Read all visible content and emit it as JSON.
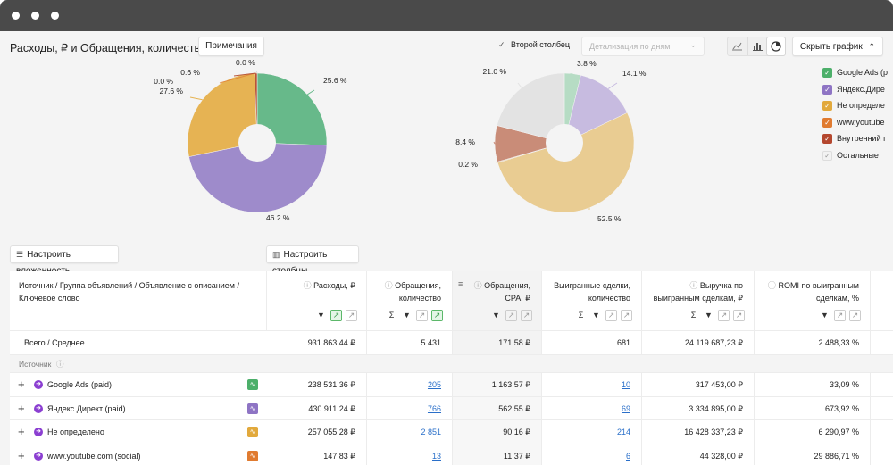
{
  "header": {
    "title": "Расходы, ₽ и Обращения, количество",
    "notes_button": "Примечания",
    "second_column_label": "Второй столбец",
    "detail_placeholder": "Детализация по дням",
    "hide_chart_button": "Скрыть график"
  },
  "chart_data": [
    {
      "type": "pie",
      "slices": [
        {
          "name": "Google Ads (paid)",
          "value": 25.6,
          "label": "25.6 %"
        },
        {
          "name": "Яндекс.Директ (paid)",
          "value": 46.2,
          "label": "46.2 %"
        },
        {
          "name": "Не определено",
          "value": 27.6,
          "label": "27.6 %"
        },
        {
          "name": "",
          "value": 0.0,
          "label": "0.0 %"
        },
        {
          "name": "",
          "value": 0.6,
          "label": "0.6 %"
        },
        {
          "name": "",
          "value": 0.0,
          "label": "0.0 %"
        }
      ],
      "colors": [
        "#67b98a",
        "#9e8bcb",
        "#e6b353",
        "#e28a3d",
        "#b75438",
        "#d9d9d9"
      ]
    },
    {
      "type": "pie",
      "slices": [
        {
          "name": "",
          "value": 3.8,
          "label": "3.8 %"
        },
        {
          "name": "",
          "value": 14.1,
          "label": "14.1 %"
        },
        {
          "name": "",
          "value": 52.5,
          "label": "52.5 %"
        },
        {
          "name": "",
          "value": 0.2,
          "label": "0.2 %"
        },
        {
          "name": "",
          "value": 8.4,
          "label": "8.4 %"
        },
        {
          "name": "",
          "value": 21.0,
          "label": "21.0 %"
        }
      ],
      "colors": [
        "#b6dcc4",
        "#c7bbe0",
        "#e9cc92",
        "#e8c79a",
        "#c98c78",
        "#e3e3e3"
      ]
    }
  ],
  "legend": [
    {
      "label": "Google Ads (p",
      "color": "#4caf6a",
      "checked": true
    },
    {
      "label": "Яндекс.Дире",
      "color": "#8e74c4",
      "checked": true
    },
    {
      "label": "Не определе",
      "color": "#e2a93c",
      "checked": true
    },
    {
      "label": "www.youtube",
      "color": "#e07b30",
      "checked": true
    },
    {
      "label": "Внутренний г",
      "color": "#b4472e",
      "checked": true
    },
    {
      "label": "Остальные",
      "color": "#f2f2f2",
      "checked": true
    }
  ],
  "toolbar": {
    "nesting_button": "Настроить вложенность",
    "columns_button": "Настроить столбцы"
  },
  "table": {
    "first_header": "Источник / Группа объявлений / Объявление с описанием / Ключевое слово",
    "columns": [
      {
        "label": "Расходы, ₽"
      },
      {
        "label": "Обращения, количество"
      },
      {
        "label": "Обращения, CPA, ₽"
      },
      {
        "label": "Выигранные сделки, количество"
      },
      {
        "label": "Выручка по выигранным сделкам, ₽"
      },
      {
        "label": "ROMI по выигранным сделкам, %"
      }
    ],
    "total": {
      "label": "Всего / Среднее",
      "values": [
        "931 863,44 ₽",
        "5 431",
        "171,58 ₽",
        "681",
        "24 119 687,23 ₽",
        "2 488,33 %"
      ]
    },
    "group_label": "Источник",
    "rows": [
      {
        "name": "Google Ads (paid)",
        "color": "#4caf6a",
        "values": [
          "238 531,36 ₽",
          "205",
          "1 163,57 ₽",
          "10",
          "317 453,00 ₽",
          "33,09 %"
        ]
      },
      {
        "name": "Яндекс.Директ (paid)",
        "color": "#8e74c4",
        "values": [
          "430 911,24 ₽",
          "766",
          "562,55 ₽",
          "69",
          "3 334 895,00 ₽",
          "673,92 %"
        ]
      },
      {
        "name": "Не определено",
        "color": "#e2a93c",
        "values": [
          "257 055,28 ₽",
          "2 851",
          "90,16 ₽",
          "214",
          "16 428 337,23 ₽",
          "6 290,97 %"
        ]
      },
      {
        "name": "www.youtube.com (social)",
        "color": "#e07b30",
        "values": [
          "147,83 ₽",
          "13",
          "11,37 ₽",
          "6",
          "44 328,00 ₽",
          "29 886,71 %"
        ]
      }
    ]
  }
}
